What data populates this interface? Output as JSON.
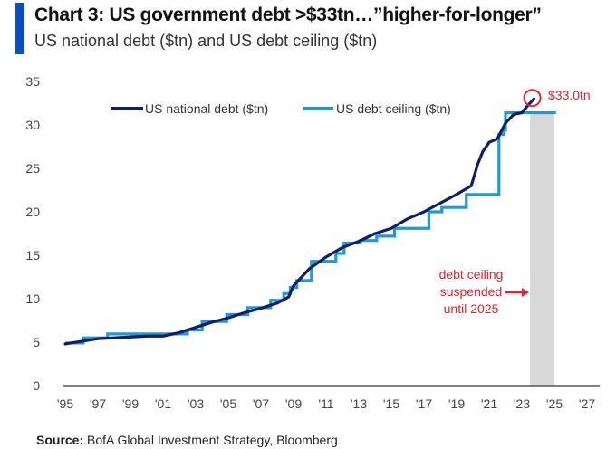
{
  "header": {
    "title": "Chart 3: US government debt >$33tn…”higher-for-longer”",
    "subtitle": "US national debt ($tn) and US debt ceiling ($tn)"
  },
  "footer": {
    "source_label": "Source:",
    "source_text": " BofA Global Investment Strategy, Bloomberg"
  },
  "colors": {
    "accent": "#0a4ec7",
    "national_debt": "#0d1f6b",
    "debt_ceiling": "#1e9ad6",
    "annotation": "#e3242b",
    "shade": "#d9d9d9",
    "axis": "#555555"
  },
  "chart_data": {
    "type": "line",
    "title": "Chart 3: US government debt >$33tn…”higher-for-longer”",
    "subtitle": "US national debt ($tn) and US debt ceiling ($tn)",
    "xlabel": "",
    "ylabel": "",
    "xlim": [
      1995,
      2027
    ],
    "ylim": [
      0,
      35
    ],
    "grid": false,
    "legend_position": "top",
    "x_tick_labels": [
      "'95",
      "'97",
      "'99",
      "'01",
      "'03",
      "'05",
      "'07",
      "'09",
      "'11",
      "'13",
      "'15",
      "'17",
      "'19",
      "'21",
      "'23",
      "'25",
      "'27"
    ],
    "x_ticks": [
      1995,
      1997,
      1999,
      2001,
      2003,
      2005,
      2007,
      2009,
      2011,
      2013,
      2015,
      2017,
      2019,
      2021,
      2023,
      2025,
      2027
    ],
    "y_ticks": [
      0,
      5,
      10,
      15,
      20,
      25,
      30,
      35
    ],
    "y_tick_labels": [
      "0",
      "5",
      "10",
      "15",
      "20",
      "25",
      "30",
      "35"
    ],
    "series": [
      {
        "name": "US national debt ($tn)",
        "kind": "line",
        "x": [
          1995,
          1996,
          1997,
          1998,
          1999,
          2000,
          2001,
          2002,
          2003,
          2004,
          2005,
          2006,
          2007,
          2008,
          2008.7,
          2009,
          2010,
          2011,
          2012,
          2013,
          2014,
          2015,
          2016,
          2017,
          2018,
          2019,
          2019.9,
          2020.3,
          2020.6,
          2021,
          2021.5,
          2022,
          2022.5,
          2023,
          2023.4,
          2023.75
        ],
        "values": [
          4.8,
          5.1,
          5.4,
          5.5,
          5.6,
          5.7,
          5.7,
          6.1,
          6.7,
          7.3,
          7.8,
          8.4,
          8.9,
          9.5,
          10.2,
          11.5,
          13.5,
          14.8,
          15.9,
          16.6,
          17.5,
          18.1,
          19.2,
          20.0,
          21.0,
          22.0,
          23.0,
          25.5,
          26.9,
          28.0,
          28.4,
          30.2,
          31.2,
          31.4,
          32.3,
          33.0
        ]
      },
      {
        "name": "US debt ceiling ($tn)",
        "kind": "step",
        "x": [
          1995,
          1996.1,
          1997.6,
          2002.5,
          2003.4,
          2004.9,
          2006.2,
          2007.6,
          2008.4,
          2008.8,
          2009.2,
          2010.1,
          2011.6,
          2012.1,
          2013.1,
          2014.1,
          2015.2,
          2017.3,
          2018.1,
          2019.6,
          2021.6,
          2021.9,
          2022.0,
          2023.5,
          2025.1
        ],
        "values": [
          4.9,
          5.5,
          5.95,
          6.4,
          7.38,
          8.18,
          8.97,
          9.82,
          10.6,
          11.3,
          12.1,
          14.3,
          15.2,
          16.4,
          16.7,
          17.2,
          18.1,
          20.0,
          20.5,
          22.0,
          28.9,
          29.4,
          31.4,
          31.4,
          31.4
        ]
      }
    ],
    "annotations": [
      {
        "type": "shaded_region",
        "x_from": 2023.5,
        "x_to": 2025.0,
        "label": "debt ceiling suspended until 2025"
      },
      {
        "type": "circle_marker",
        "x": 2023.7,
        "y": 33.0,
        "label": "$33.0tn"
      }
    ],
    "annotation_text": {
      "latest_value": "$33.0tn",
      "suspension_lines": [
        "debt ceiling",
        "suspended",
        "until 2025"
      ]
    }
  }
}
